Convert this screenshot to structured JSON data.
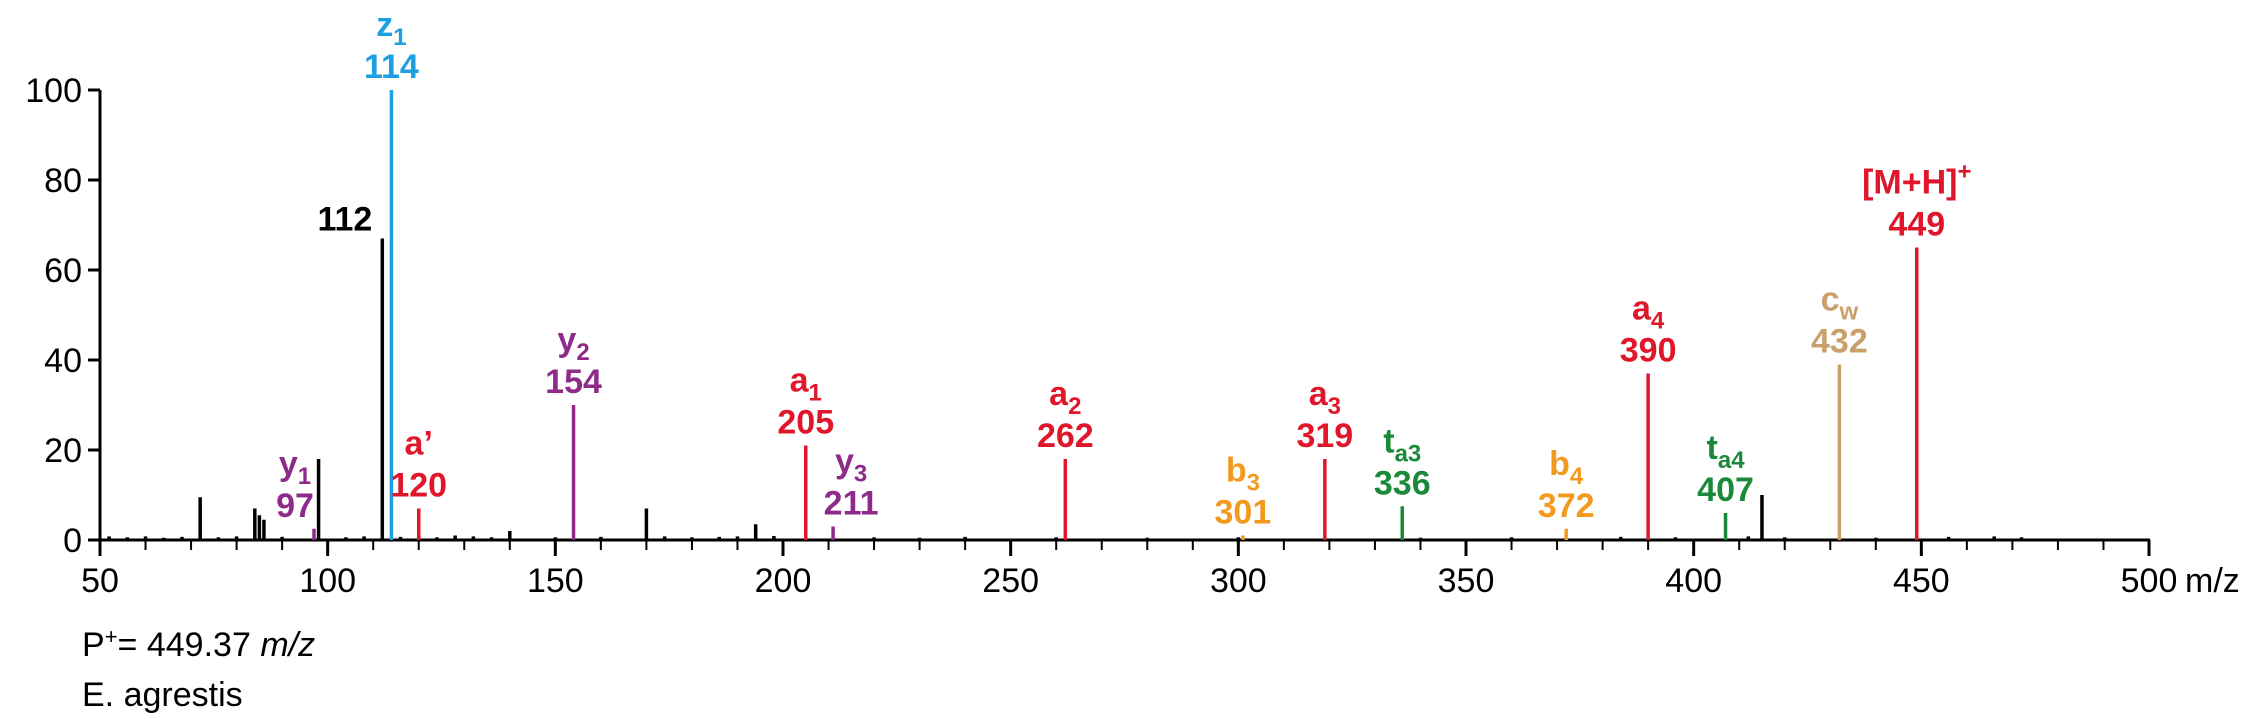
{
  "chart_data": {
    "type": "stem",
    "xlim": [
      50,
      500
    ],
    "ylim": [
      0,
      100
    ],
    "xticks": [
      50,
      100,
      150,
      200,
      250,
      300,
      350,
      400,
      450,
      500
    ],
    "xminorticks": [
      60,
      70,
      80,
      90,
      110,
      120,
      130,
      140,
      160,
      170,
      180,
      190,
      210,
      220,
      230,
      240,
      260,
      270,
      280,
      290,
      310,
      320,
      330,
      340,
      360,
      370,
      380,
      390,
      410,
      420,
      430,
      440,
      460,
      470,
      480,
      490
    ],
    "yticks": [
      0,
      20,
      40,
      60,
      80,
      100
    ],
    "xlabel": "m/z",
    "peaks": [
      {
        "x": 97,
        "value": 2.5,
        "color": "#8e2a8a",
        "ion": "y",
        "sub": "1"
      },
      {
        "x": 112,
        "value": 67,
        "color": "#000000"
      },
      {
        "x": 114,
        "value": 100,
        "color": "#1ba1e2",
        "ion": "z",
        "sub": "1"
      },
      {
        "x": 120,
        "value": 7,
        "color": "#e0162b",
        "ion": "a’"
      },
      {
        "x": 154,
        "value": 30,
        "color": "#8e2a8a",
        "ion": "y",
        "sub": "2"
      },
      {
        "x": 205,
        "value": 21,
        "color": "#e0162b",
        "ion": "a",
        "sub": "1"
      },
      {
        "x": 211,
        "value": 3,
        "color": "#8e2a8a",
        "ion": "y",
        "sub": "3"
      },
      {
        "x": 262,
        "value": 18,
        "color": "#e0162b",
        "ion": "a",
        "sub": "2"
      },
      {
        "x": 301,
        "value": 1,
        "color": "#f39a1e",
        "ion": "b",
        "sub": "3"
      },
      {
        "x": 319,
        "value": 18,
        "color": "#e0162b",
        "ion": "a",
        "sub": "3"
      },
      {
        "x": 336,
        "value": 7.5,
        "color": "#1a8a3a",
        "ion": "t",
        "sub": "a3"
      },
      {
        "x": 372,
        "value": 2.5,
        "color": "#f39a1e",
        "ion": "b",
        "sub": "4"
      },
      {
        "x": 390,
        "value": 37,
        "color": "#e0162b",
        "ion": "a",
        "sub": "4"
      },
      {
        "x": 407,
        "value": 6,
        "color": "#1a8a3a",
        "ion": "t",
        "sub": "a4"
      },
      {
        "x": 432,
        "value": 39,
        "color": "#c9a06a",
        "ion": "c",
        "sub": "w"
      },
      {
        "x": 449,
        "value": 65,
        "color": "#e0162b",
        "ion": "[M+H]",
        "sup": "+"
      }
    ],
    "other_peaks": {
      "color": "#000000",
      "x": [
        52,
        56,
        60,
        64,
        68,
        72,
        76,
        80,
        84,
        85,
        86,
        90,
        98,
        104,
        108,
        116,
        124,
        128,
        132,
        136,
        140,
        150,
        160,
        170,
        174,
        180,
        186,
        190,
        194,
        198,
        220,
        230,
        240,
        260,
        280,
        300,
        340,
        360,
        384,
        396,
        412,
        415,
        420,
        440,
        456,
        466,
        472
      ],
      "values": [
        0.8,
        0.6,
        0.8,
        0.5,
        0.7,
        9.5,
        0.6,
        0.8,
        7,
        5.5,
        4.5,
        0.7,
        18,
        0.6,
        0.8,
        0.7,
        0.6,
        1,
        0.8,
        0.6,
        2,
        0.6,
        0.7,
        7,
        0.8,
        0.6,
        0.7,
        0.8,
        3.5,
        0.9,
        0.6,
        0.5,
        0.7,
        0.6,
        0.5,
        0.6,
        0.5,
        0.6,
        0.7,
        0.6,
        0.8,
        10,
        0.6,
        0.5,
        0.7,
        0.8,
        0.6
      ]
    }
  },
  "footer": {
    "precursor_prefix": "P",
    "precursor_sup": "+",
    "precursor_eq": "=",
    "precursor_mz": 449.37,
    "precursor_unit": "m/z",
    "species": "E. agrestis"
  }
}
